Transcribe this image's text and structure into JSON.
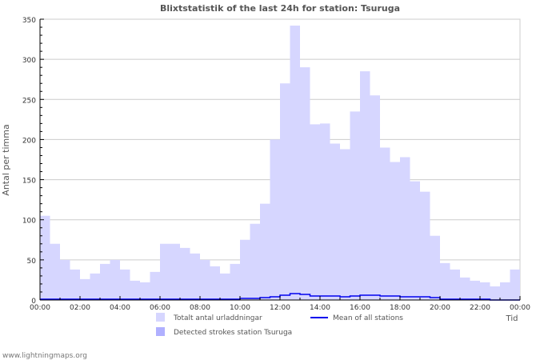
{
  "chart_data": {
    "type": "area",
    "title": "Blixtstatistik of the last 24h for station: Tsuruga",
    "ylabel": "Antal per timma",
    "xlabel": "Tid",
    "ylim": [
      0,
      350
    ],
    "yticks": [
      0,
      50,
      100,
      150,
      200,
      250,
      300,
      350
    ],
    "xtick_labels": [
      "00:00",
      "02:00",
      "04:00",
      "06:00",
      "08:00",
      "10:00",
      "12:00",
      "14:00",
      "16:00",
      "18:00",
      "20:00",
      "22:00",
      "00:00"
    ],
    "x_hours": [
      0,
      0.5,
      1,
      1.5,
      2,
      2.5,
      3,
      3.5,
      4,
      4.5,
      5,
      5.5,
      6,
      6.5,
      7,
      7.5,
      8,
      8.5,
      9,
      9.5,
      10,
      10.5,
      11,
      11.5,
      12,
      12.5,
      13,
      13.5,
      14,
      14.5,
      15,
      15.5,
      16,
      16.5,
      17,
      17.5,
      18,
      18.5,
      19,
      19.5,
      20,
      20.5,
      21,
      21.5,
      22,
      22.5,
      23,
      23.5,
      24
    ],
    "series": [
      {
        "name": "Totalt antal urladdningar",
        "type": "area",
        "color": "#d6d6ff",
        "values": [
          105,
          70,
          50,
          38,
          26,
          33,
          45,
          50,
          38,
          24,
          22,
          35,
          70,
          70,
          65,
          58,
          50,
          42,
          33,
          45,
          75,
          95,
          120,
          200,
          270,
          342,
          290,
          219,
          220,
          195,
          188,
          235,
          285,
          255,
          190,
          172,
          178,
          148,
          135,
          80,
          46,
          38,
          28,
          24,
          22,
          17,
          22,
          38,
          48
        ]
      },
      {
        "name": "Detected strokes station Tsuruga",
        "type": "area",
        "color": "#b0b0ff",
        "values": [
          0,
          0,
          0,
          0,
          0,
          0,
          0,
          0,
          0,
          0,
          0,
          0,
          0,
          0,
          0,
          0,
          0,
          0,
          0,
          0,
          0,
          0,
          0,
          0,
          0,
          0,
          0,
          0,
          0,
          0,
          0,
          0,
          0,
          0,
          0,
          0,
          0,
          0,
          0,
          0,
          0,
          0,
          0,
          0,
          0,
          0,
          0,
          0,
          0
        ]
      },
      {
        "name": "Mean of all stations",
        "type": "line",
        "color": "#0000ee",
        "values": [
          1,
          1,
          1,
          1,
          1,
          1,
          1,
          1,
          1,
          1,
          1,
          1,
          1,
          1,
          1,
          1,
          1,
          1,
          1,
          1,
          2,
          2,
          3,
          4,
          6,
          8,
          7,
          5,
          5,
          5,
          4,
          5,
          6,
          6,
          5,
          5,
          4,
          4,
          4,
          3,
          1,
          1,
          1,
          1,
          1,
          0,
          0,
          0,
          0
        ]
      }
    ],
    "legend_position": "bottom",
    "grid": true
  },
  "footer": "www.lightningmaps.org"
}
